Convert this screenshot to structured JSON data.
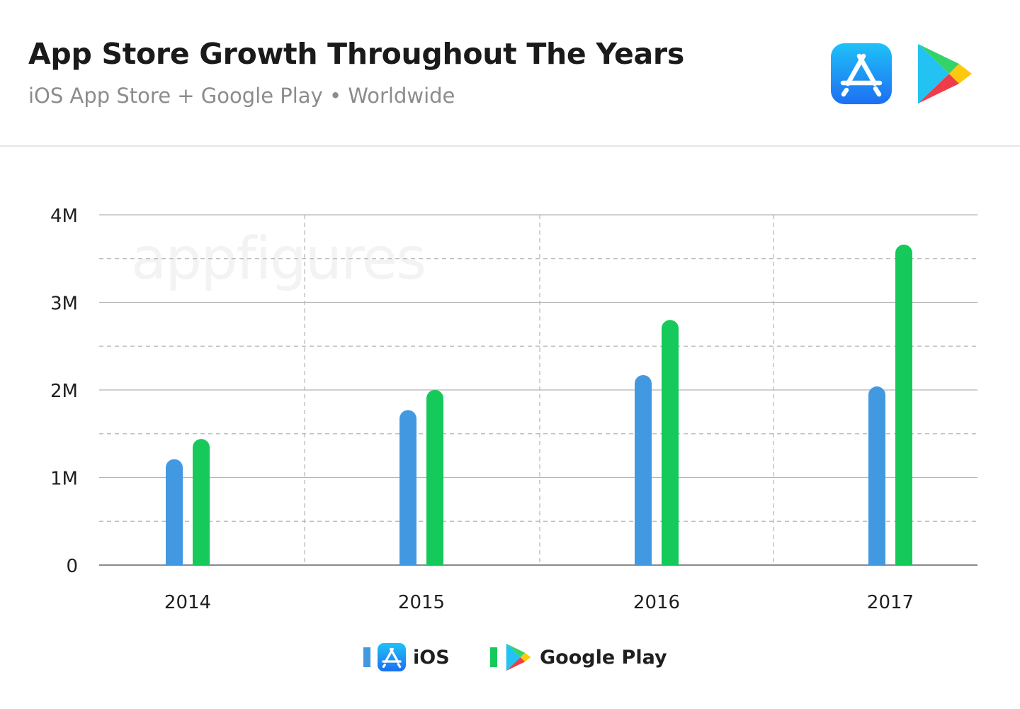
{
  "header": {
    "title": "App Store Growth Throughout The Years",
    "subtitle": "iOS App Store + Google Play • Worldwide"
  },
  "logos": {
    "app_store": "app-store-icon",
    "google_play": "google-play-icon"
  },
  "watermark": "appfigures",
  "colors": {
    "ios": "#4299e1",
    "google_play": "#15c95a",
    "grid": "#b5b5b5"
  },
  "chart_data": {
    "type": "bar",
    "title": "App Store Growth Throughout The Years",
    "subtitle": "iOS App Store + Google Play • Worldwide",
    "categories": [
      "2014",
      "2015",
      "2016",
      "2017"
    ],
    "series": [
      {
        "name": "iOS",
        "values": [
          1210000,
          1770000,
          2170000,
          2040000
        ]
      },
      {
        "name": "Google Play",
        "values": [
          1440000,
          2000000,
          2800000,
          3660000
        ]
      }
    ],
    "ylim": [
      0,
      4000000
    ],
    "yticks": [
      0,
      1000000,
      2000000,
      3000000,
      4000000
    ],
    "ytick_labels": [
      "0",
      "1M",
      "2M",
      "3M",
      "4M"
    ],
    "xlabel": "",
    "ylabel": "",
    "grid": true,
    "legend": "bottom-center"
  },
  "legend": {
    "items": [
      {
        "label": "iOS"
      },
      {
        "label": "Google Play"
      }
    ]
  }
}
